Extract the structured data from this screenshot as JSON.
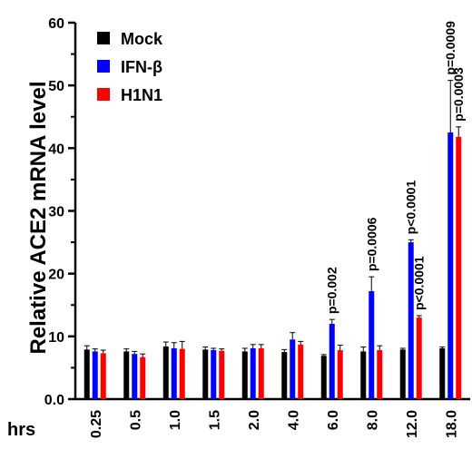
{
  "chart_data": {
    "type": "bar",
    "ylabel": "Relative ACE2 mRNA level",
    "xlabel": "hrs",
    "ylim": [
      0,
      60
    ],
    "yticks": [
      "0.0",
      "10",
      "20",
      "30",
      "40",
      "50",
      "60"
    ],
    "categories": [
      "0.25",
      "0.5",
      "1.0",
      "1.5",
      "2.0",
      "4.0",
      "6.0",
      "8.0",
      "12.0",
      "18.0"
    ],
    "legend_position": "top-left",
    "series": [
      {
        "name": "Mock",
        "color": "#000000",
        "values": [
          7.9,
          7.6,
          8.4,
          7.9,
          7.6,
          7.5,
          6.9,
          7.6,
          7.9,
          8.1
        ],
        "errors": [
          0.6,
          0.4,
          0.7,
          0.4,
          0.5,
          0.4,
          0.2,
          0.7,
          0.2,
          0.2
        ]
      },
      {
        "name": "IFN-β",
        "color": "#0000ff",
        "values": [
          7.6,
          7.2,
          8.1,
          7.8,
          8.1,
          9.5,
          12.0,
          17.2,
          25.0,
          42.5
        ],
        "errors": [
          0.4,
          0.4,
          0.9,
          0.3,
          0.6,
          1.1,
          0.7,
          2.3,
          0.4,
          8.3
        ]
      },
      {
        "name": "H1N1",
        "color": "#ff0000",
        "values": [
          7.3,
          6.7,
          8.0,
          7.7,
          8.1,
          8.7,
          7.8,
          7.8,
          13.0,
          41.8
        ],
        "errors": [
          0.5,
          0.5,
          1.2,
          0.3,
          0.6,
          0.5,
          0.8,
          0.7,
          0.3,
          1.6
        ]
      }
    ],
    "annotations": [
      {
        "category": "6.0",
        "series": "IFN-β",
        "text": "p=0.002"
      },
      {
        "category": "8.0",
        "series": "IFN-β",
        "text": "p=0.0006"
      },
      {
        "category": "12.0",
        "series": "IFN-β",
        "text": "p<0.0001"
      },
      {
        "category": "12.0",
        "series": "H1N1",
        "text": "p<0.0001"
      },
      {
        "category": "18.0",
        "series": "IFN-β",
        "text": "p=0.0009"
      },
      {
        "category": "18.0",
        "series": "H1N1",
        "text": "p=0.0003"
      }
    ]
  }
}
